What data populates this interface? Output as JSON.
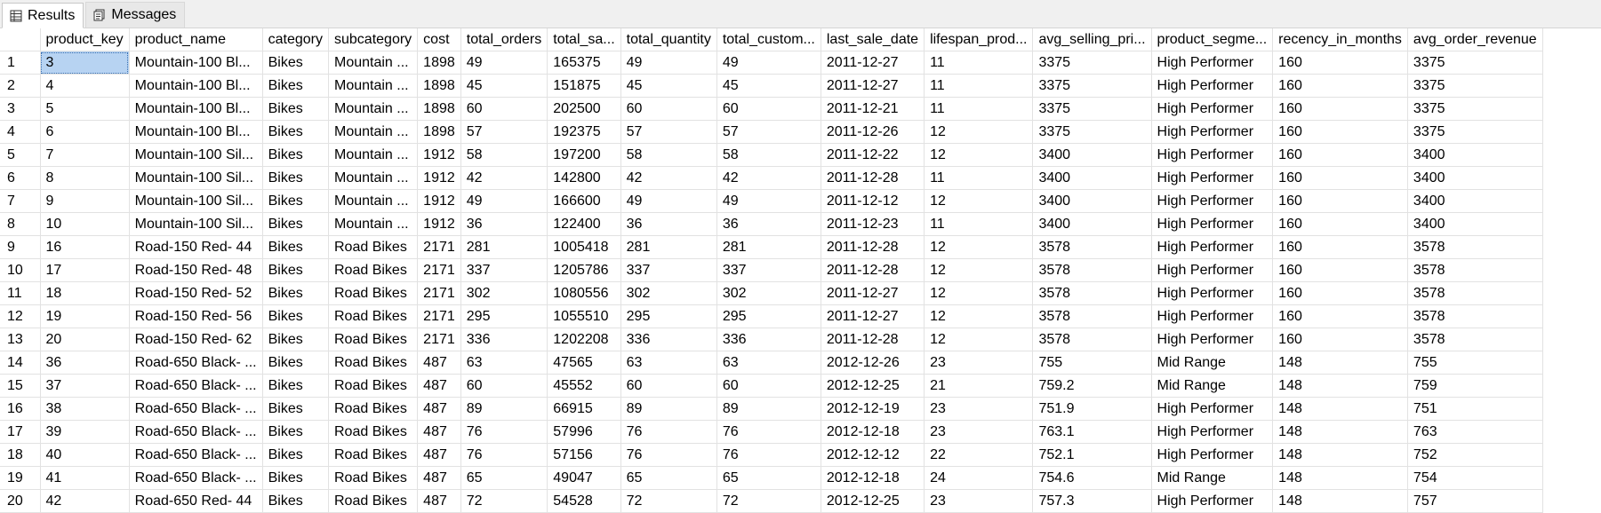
{
  "tabs": [
    {
      "label": "Results",
      "icon": "grid-icon",
      "active": true
    },
    {
      "label": "Messages",
      "icon": "messages-icon",
      "active": false
    }
  ],
  "columns": [
    "product_key",
    "product_name",
    "category",
    "subcategory",
    "cost",
    "total_orders",
    "total_sa...",
    "total_quantity",
    "total_custom...",
    "last_sale_date",
    "lifespan_prod...",
    "avg_selling_pri...",
    "product_segme...",
    "recency_in_months",
    "avg_order_revenue"
  ],
  "rows": [
    [
      "1",
      "3",
      "Mountain-100 Bl...",
      "Bikes",
      "Mountain ...",
      "1898",
      "49",
      "165375",
      "49",
      "49",
      "2011-12-27",
      "11",
      "3375",
      "High Performer",
      "160",
      "3375"
    ],
    [
      "2",
      "4",
      "Mountain-100 Bl...",
      "Bikes",
      "Mountain ...",
      "1898",
      "45",
      "151875",
      "45",
      "45",
      "2011-12-27",
      "11",
      "3375",
      "High Performer",
      "160",
      "3375"
    ],
    [
      "3",
      "5",
      "Mountain-100 Bl...",
      "Bikes",
      "Mountain ...",
      "1898",
      "60",
      "202500",
      "60",
      "60",
      "2011-12-21",
      "11",
      "3375",
      "High Performer",
      "160",
      "3375"
    ],
    [
      "4",
      "6",
      "Mountain-100 Bl...",
      "Bikes",
      "Mountain ...",
      "1898",
      "57",
      "192375",
      "57",
      "57",
      "2011-12-26",
      "12",
      "3375",
      "High Performer",
      "160",
      "3375"
    ],
    [
      "5",
      "7",
      "Mountain-100 Sil...",
      "Bikes",
      "Mountain ...",
      "1912",
      "58",
      "197200",
      "58",
      "58",
      "2011-12-22",
      "12",
      "3400",
      "High Performer",
      "160",
      "3400"
    ],
    [
      "6",
      "8",
      "Mountain-100 Sil...",
      "Bikes",
      "Mountain ...",
      "1912",
      "42",
      "142800",
      "42",
      "42",
      "2011-12-28",
      "11",
      "3400",
      "High Performer",
      "160",
      "3400"
    ],
    [
      "7",
      "9",
      "Mountain-100 Sil...",
      "Bikes",
      "Mountain ...",
      "1912",
      "49",
      "166600",
      "49",
      "49",
      "2011-12-12",
      "12",
      "3400",
      "High Performer",
      "160",
      "3400"
    ],
    [
      "8",
      "10",
      "Mountain-100 Sil...",
      "Bikes",
      "Mountain ...",
      "1912",
      "36",
      "122400",
      "36",
      "36",
      "2011-12-23",
      "11",
      "3400",
      "High Performer",
      "160",
      "3400"
    ],
    [
      "9",
      "16",
      "Road-150 Red- 44",
      "Bikes",
      "Road Bikes",
      "2171",
      "281",
      "1005418",
      "281",
      "281",
      "2011-12-28",
      "12",
      "3578",
      "High Performer",
      "160",
      "3578"
    ],
    [
      "10",
      "17",
      "Road-150 Red- 48",
      "Bikes",
      "Road Bikes",
      "2171",
      "337",
      "1205786",
      "337",
      "337",
      "2011-12-28",
      "12",
      "3578",
      "High Performer",
      "160",
      "3578"
    ],
    [
      "11",
      "18",
      "Road-150 Red- 52",
      "Bikes",
      "Road Bikes",
      "2171",
      "302",
      "1080556",
      "302",
      "302",
      "2011-12-27",
      "12",
      "3578",
      "High Performer",
      "160",
      "3578"
    ],
    [
      "12",
      "19",
      "Road-150 Red- 56",
      "Bikes",
      "Road Bikes",
      "2171",
      "295",
      "1055510",
      "295",
      "295",
      "2011-12-27",
      "12",
      "3578",
      "High Performer",
      "160",
      "3578"
    ],
    [
      "13",
      "20",
      "Road-150 Red- 62",
      "Bikes",
      "Road Bikes",
      "2171",
      "336",
      "1202208",
      "336",
      "336",
      "2011-12-28",
      "12",
      "3578",
      "High Performer",
      "160",
      "3578"
    ],
    [
      "14",
      "36",
      "Road-650 Black- ...",
      "Bikes",
      "Road Bikes",
      "487",
      "63",
      "47565",
      "63",
      "63",
      "2012-12-26",
      "23",
      "755",
      "Mid Range",
      "148",
      "755"
    ],
    [
      "15",
      "37",
      "Road-650 Black- ...",
      "Bikes",
      "Road Bikes",
      "487",
      "60",
      "45552",
      "60",
      "60",
      "2012-12-25",
      "21",
      "759.2",
      "Mid Range",
      "148",
      "759"
    ],
    [
      "16",
      "38",
      "Road-650 Black- ...",
      "Bikes",
      "Road Bikes",
      "487",
      "89",
      "66915",
      "89",
      "89",
      "2012-12-19",
      "23",
      "751.9",
      "High Performer",
      "148",
      "751"
    ],
    [
      "17",
      "39",
      "Road-650 Black- ...",
      "Bikes",
      "Road Bikes",
      "487",
      "76",
      "57996",
      "76",
      "76",
      "2012-12-18",
      "23",
      "763.1",
      "High Performer",
      "148",
      "763"
    ],
    [
      "18",
      "40",
      "Road-650 Black- ...",
      "Bikes",
      "Road Bikes",
      "487",
      "76",
      "57156",
      "76",
      "76",
      "2012-12-12",
      "22",
      "752.1",
      "High Performer",
      "148",
      "752"
    ],
    [
      "19",
      "41",
      "Road-650 Black- ...",
      "Bikes",
      "Road Bikes",
      "487",
      "65",
      "49047",
      "65",
      "65",
      "2012-12-18",
      "24",
      "754.6",
      "Mid Range",
      "148",
      "754"
    ],
    [
      "20",
      "42",
      "Road-650 Red- 44",
      "Bikes",
      "Road Bikes",
      "487",
      "72",
      "54528",
      "72",
      "72",
      "2012-12-25",
      "23",
      "757.3",
      "High Performer",
      "148",
      "757"
    ]
  ],
  "selected_cell": {
    "row": 0,
    "col": 1
  },
  "colors": {
    "selection": "#b7d3f2",
    "grid_line": "#e2e2e2",
    "tab_bar": "#f0f0f0"
  }
}
